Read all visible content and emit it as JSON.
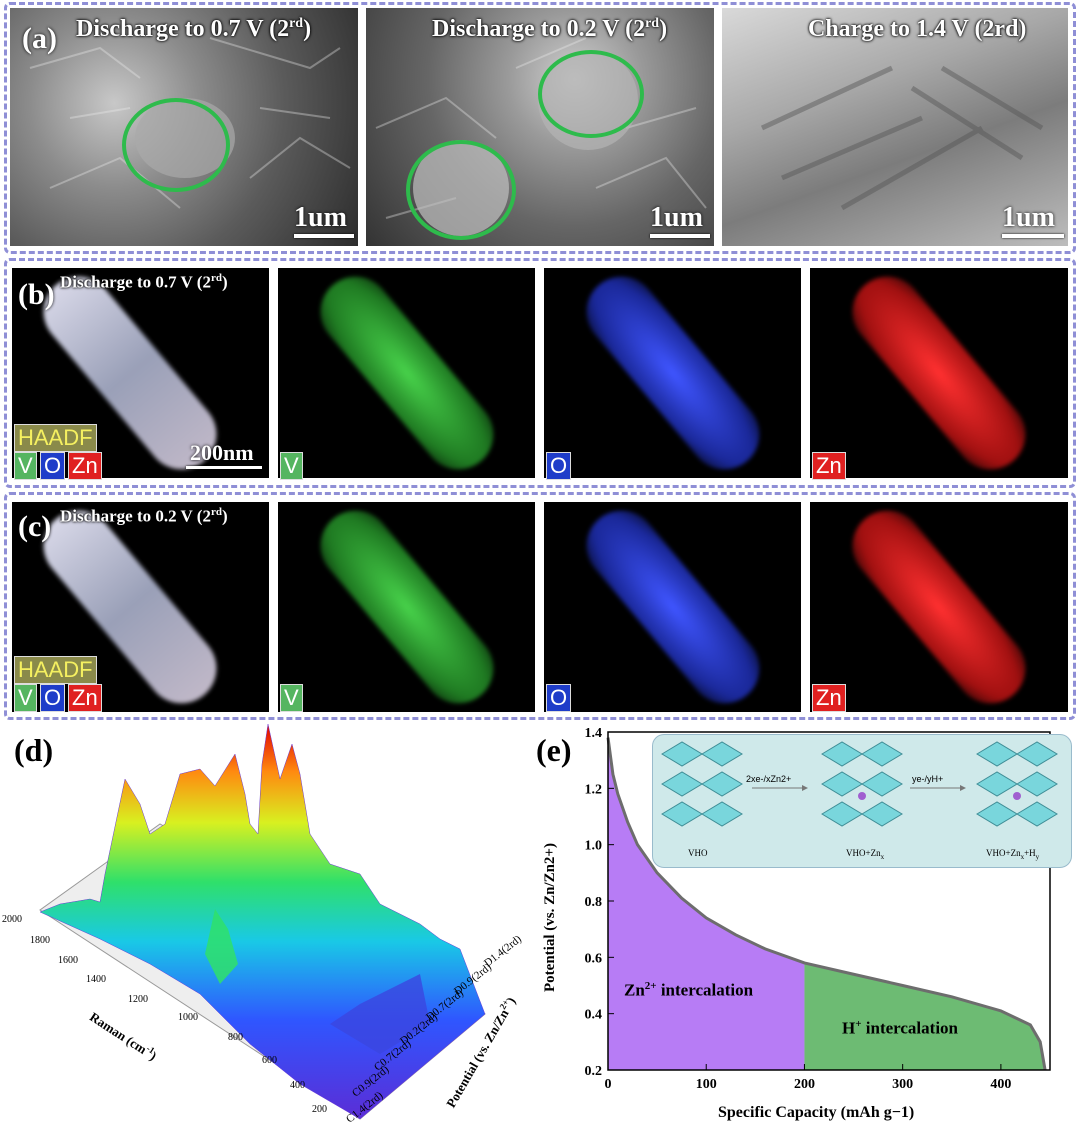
{
  "panel_a": {
    "label": "(a)",
    "images": [
      {
        "title": "Discharge to 0.7 V (2rd)",
        "title_main": "Discharge to 0.7 V (2",
        "title_sup": "rd",
        "title_end": ")",
        "scale": "1um"
      },
      {
        "title": "Discharge to 0.2 V (2rd)",
        "title_main": "Discharge to 0.2 V (2",
        "title_sup": "rd",
        "title_end": ")",
        "scale": "1um"
      },
      {
        "title": "Charge to 1.4 V (2rd)",
        "title_main": "Charge to 1.4 V (2rd)",
        "scale": "1um"
      }
    ]
  },
  "panel_b": {
    "label": "(b)",
    "title_main": "Discharge to 0.7 V (2",
    "title_sup": "rd",
    "title_end": ")",
    "haadf": "HAADF",
    "elements": [
      "V",
      "O",
      "Zn"
    ],
    "scale": "200nm"
  },
  "panel_c": {
    "label": "(c)",
    "title_main": "Discharge to 0.2 V (2",
    "title_sup": "rd",
    "title_end": ")",
    "haadf": "HAADF",
    "elements": [
      "V",
      "O",
      "Zn"
    ]
  },
  "panel_d": {
    "label": "(d)",
    "x_axis_label": "Raman (cm",
    "x_axis_sup": "-1",
    "x_axis_end": ")",
    "y_axis_label": "Potential (vs. Zn/Zn",
    "y_axis_sup": "2+",
    "y_axis_end": ")",
    "raman_ticks": [
      "2000",
      "1800",
      "1600",
      "1400",
      "1200",
      "1000",
      "800",
      "600",
      "400",
      "200"
    ],
    "potential_ticks": [
      "D1.4(2rd)",
      "D0.9(2rd)",
      "D0.7(2rd)",
      "D0.2(2rd)",
      "C0.7(2rd)",
      "C0.9(2rd)",
      "C1.4(2rd)"
    ]
  },
  "chart_data": {
    "type": "area",
    "title": "",
    "label": "(e)",
    "xlabel": "Specific Capacity (mAh g−1)",
    "ylabel": "Potential (vs. Zn/Zn2+)",
    "xlim": [
      0,
      450
    ],
    "ylim": [
      0.2,
      1.4
    ],
    "x_ticks": [
      "0",
      "100",
      "200",
      "300",
      "400"
    ],
    "y_ticks": [
      "0.2",
      "0.4",
      "0.6",
      "0.8",
      "1.0",
      "1.2",
      "1.4"
    ],
    "x": [
      0,
      5,
      10,
      20,
      30,
      50,
      75,
      100,
      130,
      160,
      200,
      250,
      300,
      350,
      400,
      430,
      440,
      445
    ],
    "y": [
      1.38,
      1.25,
      1.18,
      1.08,
      1.0,
      0.9,
      0.81,
      0.74,
      0.68,
      0.63,
      0.58,
      0.54,
      0.5,
      0.46,
      0.41,
      0.36,
      0.3,
      0.2
    ],
    "regions": [
      {
        "name": "Zn2+ intercalation",
        "label_main": "Zn",
        "label_sup": "2+",
        "label_end": " intercalation",
        "x_range": [
          0,
          200
        ],
        "color": "#b77cf5"
      },
      {
        "name": "H+ intercalation",
        "label_main": "H",
        "label_sup": "+",
        "label_end": " intercalation",
        "x_range": [
          200,
          445
        ],
        "color": "#6dbb73"
      }
    ],
    "inset": {
      "steps": [
        "VHO",
        "VHO+Zn",
        "VHO+Zn"
      ],
      "step_subs": [
        "",
        "x",
        "x"
      ],
      "step_suffix": [
        "",
        "",
        "+H"
      ],
      "step_suffix_sub": [
        "",
        "",
        "y"
      ],
      "arrows": [
        "2xe-/xZn2+",
        "ye-/yH+"
      ]
    }
  }
}
